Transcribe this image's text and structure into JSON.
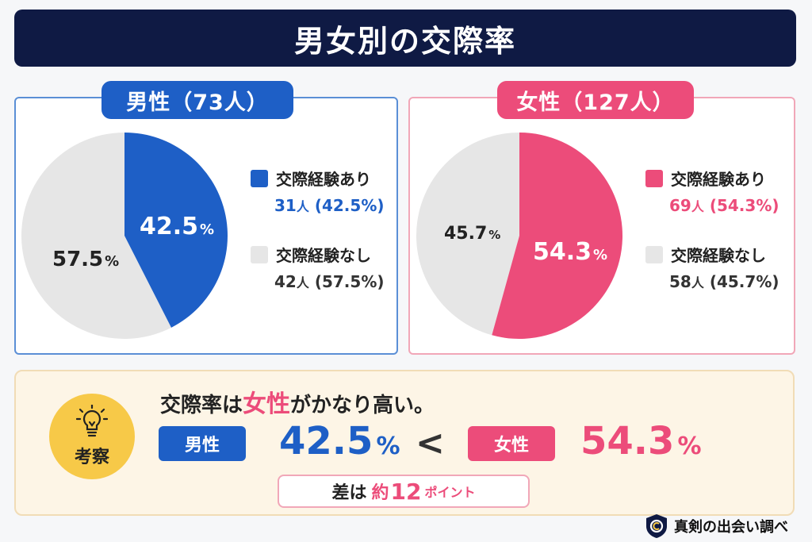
{
  "title": "男女別の交際率",
  "colors": {
    "male": "#1e5fc6",
    "female": "#ec4c7a",
    "none": "#e6e6e6",
    "navy": "#0f1a44"
  },
  "male": {
    "heading": "男性（73人）",
    "yes_label": "交際経験あり",
    "yes_count": "31",
    "yes_unit": "人",
    "yes_pct": "(42.5%)",
    "no_label": "交際経験なし",
    "no_count": "42",
    "no_unit": "人",
    "no_pct": "(57.5%)",
    "pie_yes": "42.5",
    "pie_no": "57.5",
    "pct_sign": "%"
  },
  "female": {
    "heading": "女性（127人）",
    "yes_label": "交際経験あり",
    "yes_count": "69",
    "yes_unit": "人",
    "yes_pct": "(54.3%)",
    "no_label": "交際経験なし",
    "no_count": "58",
    "no_unit": "人",
    "no_pct": "(45.7%)",
    "pie_yes": "54.3",
    "pie_no": "45.7",
    "pct_sign": "%"
  },
  "summary": {
    "badge": "考察",
    "headline_pre": "交際率は",
    "headline_hl": "女性",
    "headline_post": "がかなり高い。",
    "male_label": "男性",
    "male_value": "42.5",
    "female_label": "女性",
    "female_value": "54.3",
    "pct": "%",
    "comparator": "<",
    "diff_pre": "差は",
    "diff_mid": "約",
    "diff_num": "12",
    "diff_unit": "ポイント"
  },
  "brand": "真剣の出会い調べ",
  "chart_data": [
    {
      "type": "pie",
      "title": "男性（73人）",
      "categories": [
        "交際経験あり",
        "交際経験なし"
      ],
      "values": [
        42.5,
        57.5
      ],
      "counts": [
        31,
        42
      ]
    },
    {
      "type": "pie",
      "title": "女性（127人）",
      "categories": [
        "交際経験あり",
        "交際経験なし"
      ],
      "values": [
        54.3,
        45.7
      ],
      "counts": [
        69,
        58
      ]
    }
  ]
}
